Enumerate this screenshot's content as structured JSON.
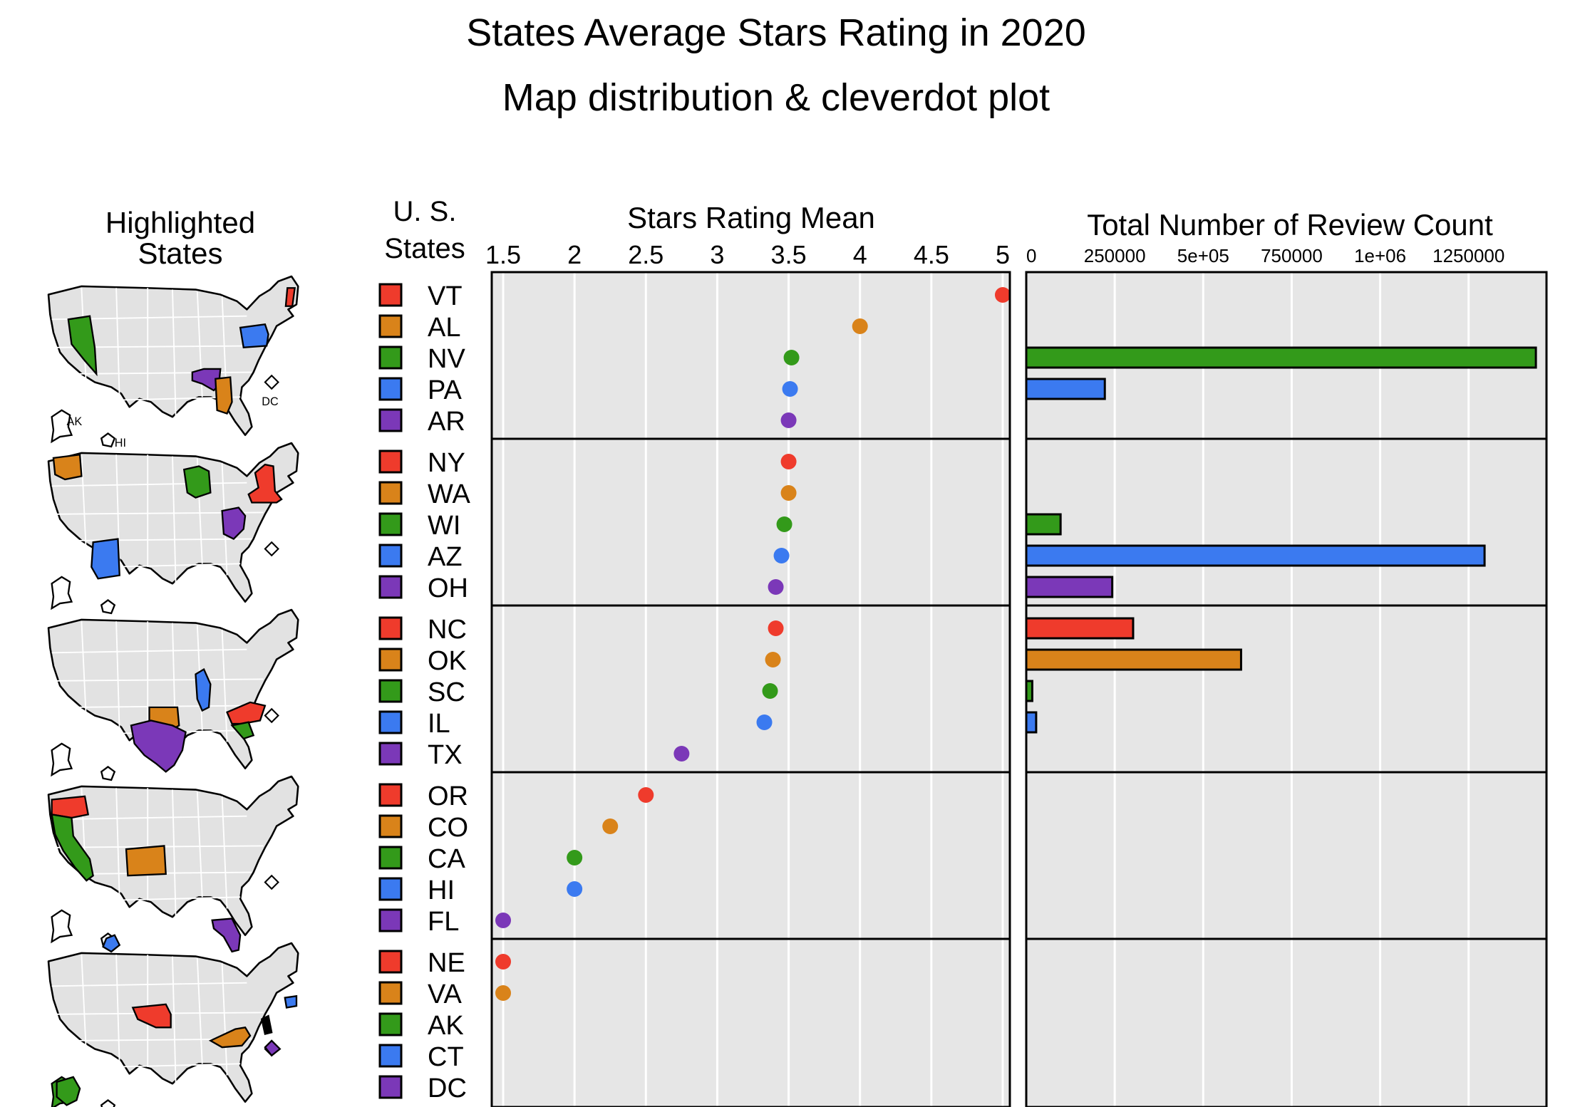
{
  "title": "States Average Stars Rating in 2020",
  "subtitle": "Map distribution & cleverdot plot",
  "map_panel": {
    "title_line1": "Highlighted",
    "title_line2": "States",
    "label_ak": "AK",
    "label_hi": "HI",
    "label_dc": "DC"
  },
  "states_header": {
    "line1": "U. S.",
    "line2": "States"
  },
  "colors": [
    "#ef3b2c",
    "#d9831a",
    "#339a1a",
    "#3b7af0",
    "#7b38b8"
  ],
  "chart_data": [
    {
      "type": "scatter",
      "title": "Stars Rating Mean",
      "xlim": [
        1.42,
        5.05
      ],
      "xticks": [
        1.5,
        2,
        2.5,
        3,
        3.5,
        4,
        4.5,
        5
      ],
      "xtick_labels": [
        "1.5",
        "2",
        "2.5",
        "3",
        "3.5",
        "4",
        "4.5",
        "5"
      ],
      "groups": [
        {
          "states": [
            "VT",
            "AL",
            "NV",
            "PA",
            "AR"
          ],
          "values": [
            5.0,
            4.0,
            3.52,
            3.51,
            3.5
          ]
        },
        {
          "states": [
            "NY",
            "WA",
            "WI",
            "AZ",
            "OH"
          ],
          "values": [
            3.5,
            3.5,
            3.47,
            3.45,
            3.41
          ]
        },
        {
          "states": [
            "NC",
            "OK",
            "SC",
            "IL",
            "TX"
          ],
          "values": [
            3.41,
            3.39,
            3.37,
            3.33,
            2.75
          ]
        },
        {
          "states": [
            "OR",
            "CO",
            "CA",
            "HI",
            "FL"
          ],
          "values": [
            2.5,
            2.25,
            2.0,
            2.0,
            1.5
          ]
        },
        {
          "states": [
            "NE",
            "VA",
            "AK",
            "CT",
            "DC"
          ],
          "values": [
            1.5,
            1.5,
            null,
            null,
            null
          ]
        }
      ]
    },
    {
      "type": "bar",
      "title": "Total Number of Review Count",
      "xlim": [
        0,
        1470000
      ],
      "xticks": [
        0,
        250000,
        500000,
        750000,
        1000000,
        1250000
      ],
      "xtick_labels": [
        "0",
        "250000",
        "5e+05",
        "750000",
        "1e+06",
        "1250000"
      ],
      "groups": [
        {
          "states": [
            "VT",
            "AL",
            "NV",
            "PA",
            "AR"
          ],
          "values": [
            0,
            0,
            1440000,
            222000,
            0
          ]
        },
        {
          "states": [
            "NY",
            "WA",
            "WI",
            "AZ",
            "OH"
          ],
          "values": [
            0,
            0,
            97000,
            1295000,
            243000
          ]
        },
        {
          "states": [
            "NC",
            "OK",
            "SC",
            "IL",
            "TX"
          ],
          "values": [
            302000,
            607000,
            17000,
            28000,
            0
          ]
        },
        {
          "states": [
            "OR",
            "CO",
            "CA",
            "HI",
            "FL"
          ],
          "values": [
            0,
            0,
            0,
            0,
            0
          ]
        },
        {
          "states": [
            "NE",
            "VA",
            "AK",
            "CT",
            "DC"
          ],
          "values": [
            0,
            0,
            0,
            0,
            0
          ]
        }
      ]
    }
  ]
}
